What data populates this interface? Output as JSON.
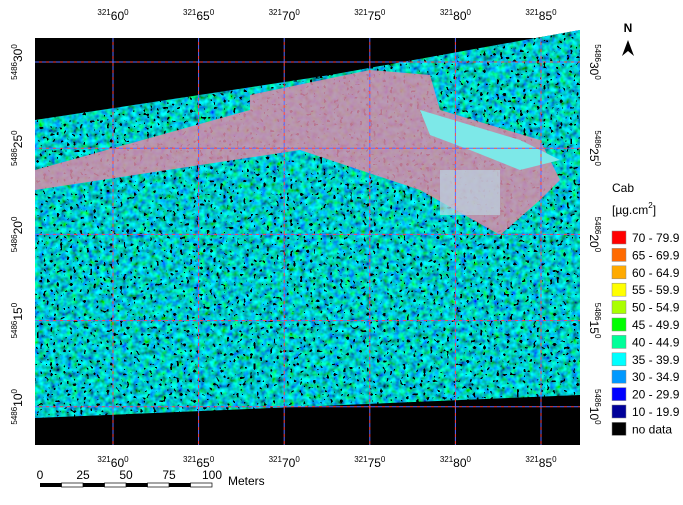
{
  "map": {
    "x_labels": [
      {
        "prefix": "321",
        "main": "60",
        "suffix": "0"
      },
      {
        "prefix": "321",
        "main": "65",
        "suffix": "0"
      },
      {
        "prefix": "321",
        "main": "70",
        "suffix": "0"
      },
      {
        "prefix": "321",
        "main": "75",
        "suffix": "0"
      },
      {
        "prefix": "321",
        "main": "80",
        "suffix": "0"
      },
      {
        "prefix": "321",
        "main": "85",
        "suffix": "0"
      }
    ],
    "y_labels": [
      {
        "prefix": "5486",
        "main": "30",
        "suffix": "0"
      },
      {
        "prefix": "5486",
        "main": "25",
        "suffix": "0"
      },
      {
        "prefix": "5486",
        "main": "20",
        "suffix": "0"
      },
      {
        "prefix": "5486",
        "main": "15",
        "suffix": "0"
      },
      {
        "prefix": "5486",
        "main": "10",
        "suffix": "0"
      }
    ],
    "legend": {
      "title": "Cab",
      "unit": "[µg.cm",
      "unit_sup": "2",
      "unit_end": "]",
      "items": [
        {
          "label": "70 - 79.9",
          "color": "#ff0000"
        },
        {
          "label": "65 - 69.9",
          "color": "#ff6a00"
        },
        {
          "label": "60 - 64.9",
          "color": "#ffaa00"
        },
        {
          "label": "55 - 59.9",
          "color": "#ffff00"
        },
        {
          "label": "50 - 54.9",
          "color": "#aaff00"
        },
        {
          "label": "45 - 49.9",
          "color": "#00ff00"
        },
        {
          "label": "40 - 44.9",
          "color": "#00ff99"
        },
        {
          "label": "35 - 39.9",
          "color": "#00ffff"
        },
        {
          "label": "30 - 34.9",
          "color": "#0099ff"
        },
        {
          "label": "20 - 29.9",
          "color": "#0000ff"
        },
        {
          "label": "10 - 19.9",
          "color": "#000099"
        },
        {
          "label": "no data",
          "color": "#000000"
        }
      ]
    },
    "scale_bar": {
      "labels": [
        "0",
        "25",
        "50",
        "75",
        "100"
      ],
      "unit": "Meters"
    },
    "north": "N"
  }
}
